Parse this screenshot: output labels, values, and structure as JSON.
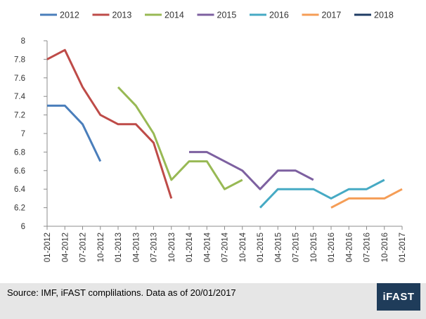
{
  "chart_data": {
    "type": "line",
    "title": "",
    "xlabel": "",
    "ylabel": "",
    "ylim": [
      6,
      8
    ],
    "yticks": [
      6,
      6.2,
      6.4,
      6.6,
      6.8,
      7,
      7.2,
      7.4,
      7.6,
      7.8,
      8
    ],
    "grid": false,
    "legend_position": "top",
    "categories": [
      "01-2012",
      "04-2012",
      "07-2012",
      "10-2012",
      "01-2013",
      "04-2013",
      "07-2013",
      "10-2013",
      "01-2014",
      "04-2014",
      "07-2014",
      "10-2014",
      "01-2015",
      "04-2015",
      "07-2015",
      "10-2015",
      "01-2016",
      "04-2016",
      "07-2016",
      "10-2016",
      "01-2017"
    ],
    "series": [
      {
        "name": "2012",
        "color": "#4a7ebb",
        "points": [
          [
            "01-2012",
            7.3
          ],
          [
            "04-2012",
            7.3
          ],
          [
            "07-2012",
            7.1
          ],
          [
            "10-2012",
            6.7
          ]
        ]
      },
      {
        "name": "2013",
        "color": "#be4b48",
        "points": [
          [
            "01-2012",
            7.8
          ],
          [
            "04-2012",
            7.9
          ],
          [
            "07-2012",
            7.5
          ],
          [
            "10-2012",
            7.2
          ],
          [
            "01-2013",
            7.1
          ],
          [
            "04-2013",
            7.1
          ],
          [
            "07-2013",
            6.9
          ],
          [
            "10-2013",
            6.3
          ]
        ]
      },
      {
        "name": "2014",
        "color": "#98b954",
        "points": [
          [
            "01-2013",
            7.5
          ],
          [
            "04-2013",
            7.3
          ],
          [
            "07-2013",
            7.0
          ],
          [
            "10-2013",
            6.5
          ],
          [
            "01-2014",
            6.7
          ],
          [
            "04-2014",
            6.7
          ],
          [
            "07-2014",
            6.4
          ],
          [
            "10-2014",
            6.5
          ]
        ]
      },
      {
        "name": "2015",
        "color": "#7d60a0",
        "points": [
          [
            "01-2014",
            6.8
          ],
          [
            "04-2014",
            6.8
          ],
          [
            "07-2014",
            6.7
          ],
          [
            "10-2014",
            6.6
          ],
          [
            "01-2015",
            6.4
          ],
          [
            "04-2015",
            6.6
          ],
          [
            "07-2015",
            6.6
          ],
          [
            "10-2015",
            6.5
          ]
        ]
      },
      {
        "name": "2016",
        "color": "#46aac4",
        "points": [
          [
            "01-2015",
            6.2
          ],
          [
            "04-2015",
            6.4
          ],
          [
            "07-2015",
            6.4
          ],
          [
            "10-2015",
            6.4
          ],
          [
            "01-2016",
            6.3
          ],
          [
            "04-2016",
            6.4
          ],
          [
            "07-2016",
            6.4
          ],
          [
            "10-2016",
            6.5
          ]
        ]
      },
      {
        "name": "2017",
        "color": "#f59d56",
        "points": [
          [
            "01-2016",
            6.2
          ],
          [
            "04-2016",
            6.3
          ],
          [
            "07-2016",
            6.3
          ],
          [
            "10-2016",
            6.3
          ],
          [
            "01-2017",
            6.4
          ]
        ]
      },
      {
        "name": "2018",
        "color": "#1f3c64",
        "points": []
      }
    ]
  },
  "footer": {
    "source": "Source: IMF, iFAST complilations. Data as of 20/01/2017",
    "logo_text": "iFAST",
    "logo_color": "#1f3c5a"
  }
}
